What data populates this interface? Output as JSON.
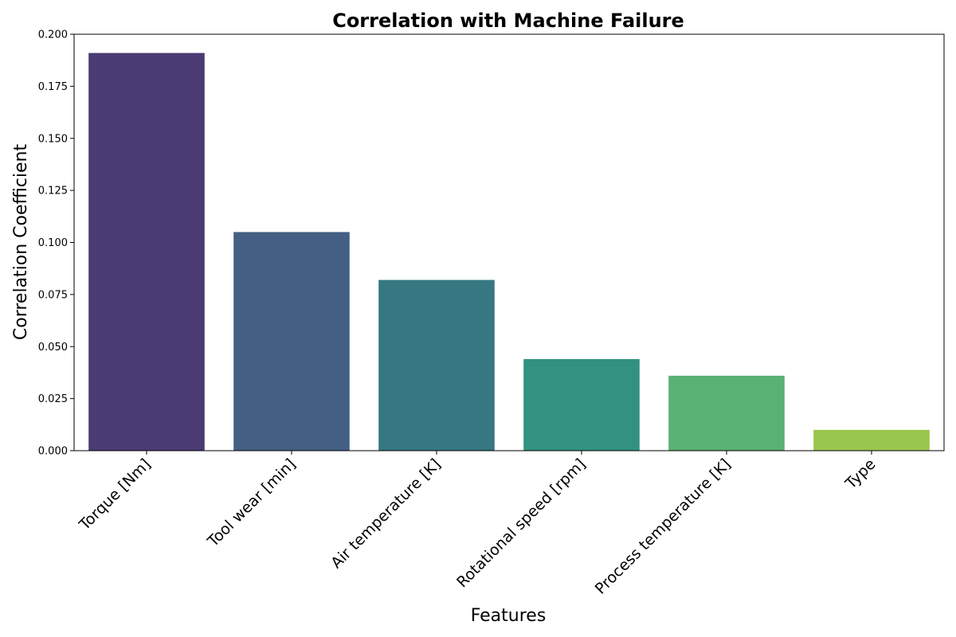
{
  "chart_data": {
    "type": "bar",
    "title": "Correlation with Machine Failure",
    "xlabel": "Features",
    "ylabel": "Correlation Coefficient",
    "categories": [
      "Torque [Nm]",
      "Tool wear [min]",
      "Air temperature [K]",
      "Rotational speed [rpm]",
      "Process temperature [K]",
      "Type"
    ],
    "values": [
      0.191,
      0.105,
      0.082,
      0.044,
      0.036,
      0.01
    ],
    "colors": [
      "#4a3b73",
      "#435f83",
      "#367781",
      "#32927f",
      "#59b173",
      "#98c64c"
    ],
    "ylim": [
      0,
      0.2
    ],
    "yticks": [
      "0.000",
      "0.025",
      "0.050",
      "0.075",
      "0.100",
      "0.125",
      "0.150",
      "0.175",
      "0.200"
    ],
    "grid": false,
    "legend": "none"
  }
}
